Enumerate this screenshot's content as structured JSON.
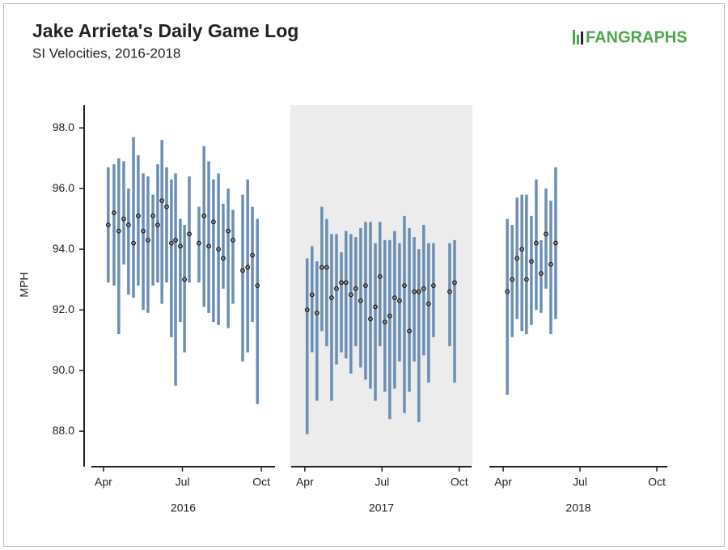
{
  "chart_data": {
    "type": "range-dot",
    "title": "Jake Arrieta's Daily Game Log",
    "subtitle": "SI Velocities, 2016-2018",
    "logo": "FANGRAPHS",
    "ylabel": "MPH",
    "ylim": [
      86.83,
      98.75
    ],
    "yticks": [
      {
        "value": 88,
        "label": "88.0"
      },
      {
        "value": 90,
        "label": "90.0"
      },
      {
        "value": 92,
        "label": "92.0"
      },
      {
        "value": 94,
        "label": "94.0"
      },
      {
        "value": 96,
        "label": "96.0"
      },
      {
        "value": 98,
        "label": "98.0"
      }
    ],
    "bar_color": "#6b8fb4",
    "dot_color": "#8a8a8a",
    "panels": [
      {
        "label": "2016",
        "shaded": false,
        "xlim": [
          3.54,
          10.52
        ],
        "xticks": [
          {
            "value": 4,
            "label": "Apr"
          },
          {
            "value": 7,
            "label": "Jul"
          },
          {
            "value": 10,
            "label": "Oct"
          }
        ],
        "x": [
          4.18,
          4.4,
          4.58,
          4.77,
          4.95,
          5.14,
          5.32,
          5.51,
          5.69,
          5.88,
          6.06,
          6.22,
          6.4,
          6.58,
          6.74,
          6.92,
          7.08,
          7.26,
          7.63,
          7.82,
          8.0,
          8.18,
          8.37,
          8.55,
          8.74,
          8.92,
          9.29,
          9.48,
          9.66,
          9.85
        ],
        "high": [
          96.7,
          96.8,
          97.0,
          96.9,
          96.0,
          97.7,
          97.1,
          96.5,
          96.4,
          95.8,
          96.8,
          97.6,
          96.7,
          96.3,
          96.5,
          95.0,
          94.8,
          96.4,
          95.4,
          97.4,
          96.9,
          96.3,
          96.5,
          95.5,
          96.0,
          95.3,
          95.8,
          96.3,
          95.4,
          95.0
        ],
        "low": [
          92.9,
          92.8,
          91.2,
          93.5,
          92.5,
          92.4,
          92.8,
          92.0,
          91.9,
          92.8,
          92.9,
          92.2,
          92.9,
          91.1,
          89.5,
          91.6,
          90.6,
          92.9,
          92.9,
          92.1,
          91.9,
          91.6,
          91.5,
          92.7,
          91.4,
          92.2,
          90.3,
          90.6,
          91.6,
          88.9
        ],
        "values": [
          94.8,
          95.2,
          94.6,
          95.0,
          94.8,
          94.2,
          95.1,
          94.6,
          94.3,
          95.1,
          94.8,
          95.6,
          95.4,
          94.2,
          94.3,
          94.1,
          93.0,
          94.5,
          94.2,
          95.1,
          94.1,
          94.9,
          94.0,
          93.7,
          94.6,
          94.3,
          93.3,
          93.4,
          93.8,
          92.8
        ]
      },
      {
        "label": "2017",
        "shaded": true,
        "xlim": [
          3.47,
          10.48
        ],
        "xticks": [
          {
            "value": 4,
            "label": "Apr"
          },
          {
            "value": 7,
            "label": "Jul"
          },
          {
            "value": 10,
            "label": "Oct"
          }
        ],
        "x": [
          4.09,
          4.28,
          4.47,
          4.66,
          4.85,
          5.04,
          5.23,
          5.42,
          5.6,
          5.79,
          5.98,
          6.17,
          6.36,
          6.55,
          6.74,
          6.92,
          7.11,
          7.3,
          7.49,
          7.68,
          7.87,
          8.06,
          8.25,
          8.43,
          8.62,
          8.81,
          9.0,
          9.63,
          9.82
        ],
        "high": [
          93.7,
          94.1,
          93.6,
          95.4,
          95.0,
          94.5,
          94.5,
          93.9,
          94.6,
          94.5,
          94.4,
          94.7,
          94.9,
          94.9,
          94.2,
          94.9,
          94.3,
          94.3,
          94.6,
          94.2,
          95.1,
          94.7,
          94.4,
          94.0,
          94.8,
          94.2,
          94.2,
          94.2,
          94.3
        ],
        "low": [
          87.9,
          90.6,
          89.0,
          91.3,
          90.8,
          89.0,
          90.2,
          90.6,
          90.4,
          89.9,
          90.8,
          90.1,
          89.7,
          89.4,
          89.0,
          90.8,
          89.3,
          88.4,
          89.4,
          90.3,
          88.6,
          89.3,
          90.3,
          88.3,
          90.5,
          89.6,
          91.1,
          90.8,
          89.6
        ],
        "values": [
          92.0,
          92.5,
          91.9,
          93.4,
          93.4,
          92.4,
          92.7,
          92.9,
          92.9,
          92.5,
          92.7,
          92.3,
          92.8,
          91.7,
          92.1,
          93.1,
          91.6,
          91.8,
          92.4,
          92.3,
          92.8,
          91.3,
          92.6,
          92.6,
          92.7,
          92.2,
          92.8,
          92.6,
          92.9
        ]
      },
      {
        "label": "2018",
        "shaded": false,
        "xlim": [
          3.46,
          10.41
        ],
        "xticks": [
          {
            "value": 4,
            "label": "Apr"
          },
          {
            "value": 7,
            "label": "Jul"
          },
          {
            "value": 10,
            "label": "Oct"
          }
        ],
        "x": [
          4.16,
          4.35,
          4.54,
          4.73,
          4.91,
          5.1,
          5.29,
          5.48,
          5.67,
          5.86,
          6.05
        ],
        "high": [
          95.0,
          94.8,
          95.7,
          95.8,
          95.8,
          95.1,
          96.3,
          94.3,
          96.0,
          95.6,
          96.7
        ],
        "low": [
          89.2,
          91.1,
          91.7,
          91.3,
          91.2,
          91.5,
          92.0,
          91.9,
          92.7,
          91.2,
          91.7
        ],
        "values": [
          92.6,
          93.0,
          93.7,
          94.0,
          93.0,
          93.6,
          94.2,
          93.2,
          94.5,
          93.5,
          94.2
        ]
      }
    ]
  }
}
